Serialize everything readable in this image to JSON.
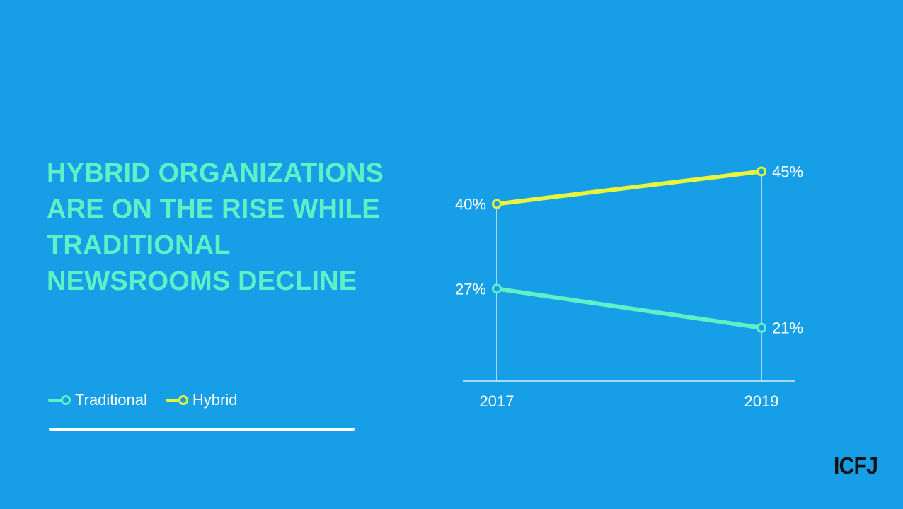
{
  "headline": "HYBRID ORGANIZATIONS ARE ON THE RISE WHILE TRADITIONAL NEWSROOMS DECLINE",
  "logo": "ICFJ",
  "colors": {
    "background": "#169fe6",
    "traditional": "#5ff0c6",
    "hybrid": "#e9f53a",
    "axis": "#ffffff"
  },
  "chart_data": {
    "type": "line",
    "title": "HYBRID ORGANIZATIONS ARE ON THE RISE WHILE TRADITIONAL NEWSROOMS DECLINE",
    "x": [
      "2017",
      "2019"
    ],
    "ylim": [
      0,
      50
    ],
    "grid": false,
    "legend": "bottom-left",
    "series": [
      {
        "name": "Traditional",
        "values": [
          27,
          21
        ],
        "labels": [
          "27%",
          "21%"
        ],
        "color": "#5ff0c6"
      },
      {
        "name": "Hybrid",
        "values": [
          40,
          45
        ],
        "labels": [
          "40%",
          "45%"
        ],
        "color": "#e9f53a"
      }
    ]
  }
}
